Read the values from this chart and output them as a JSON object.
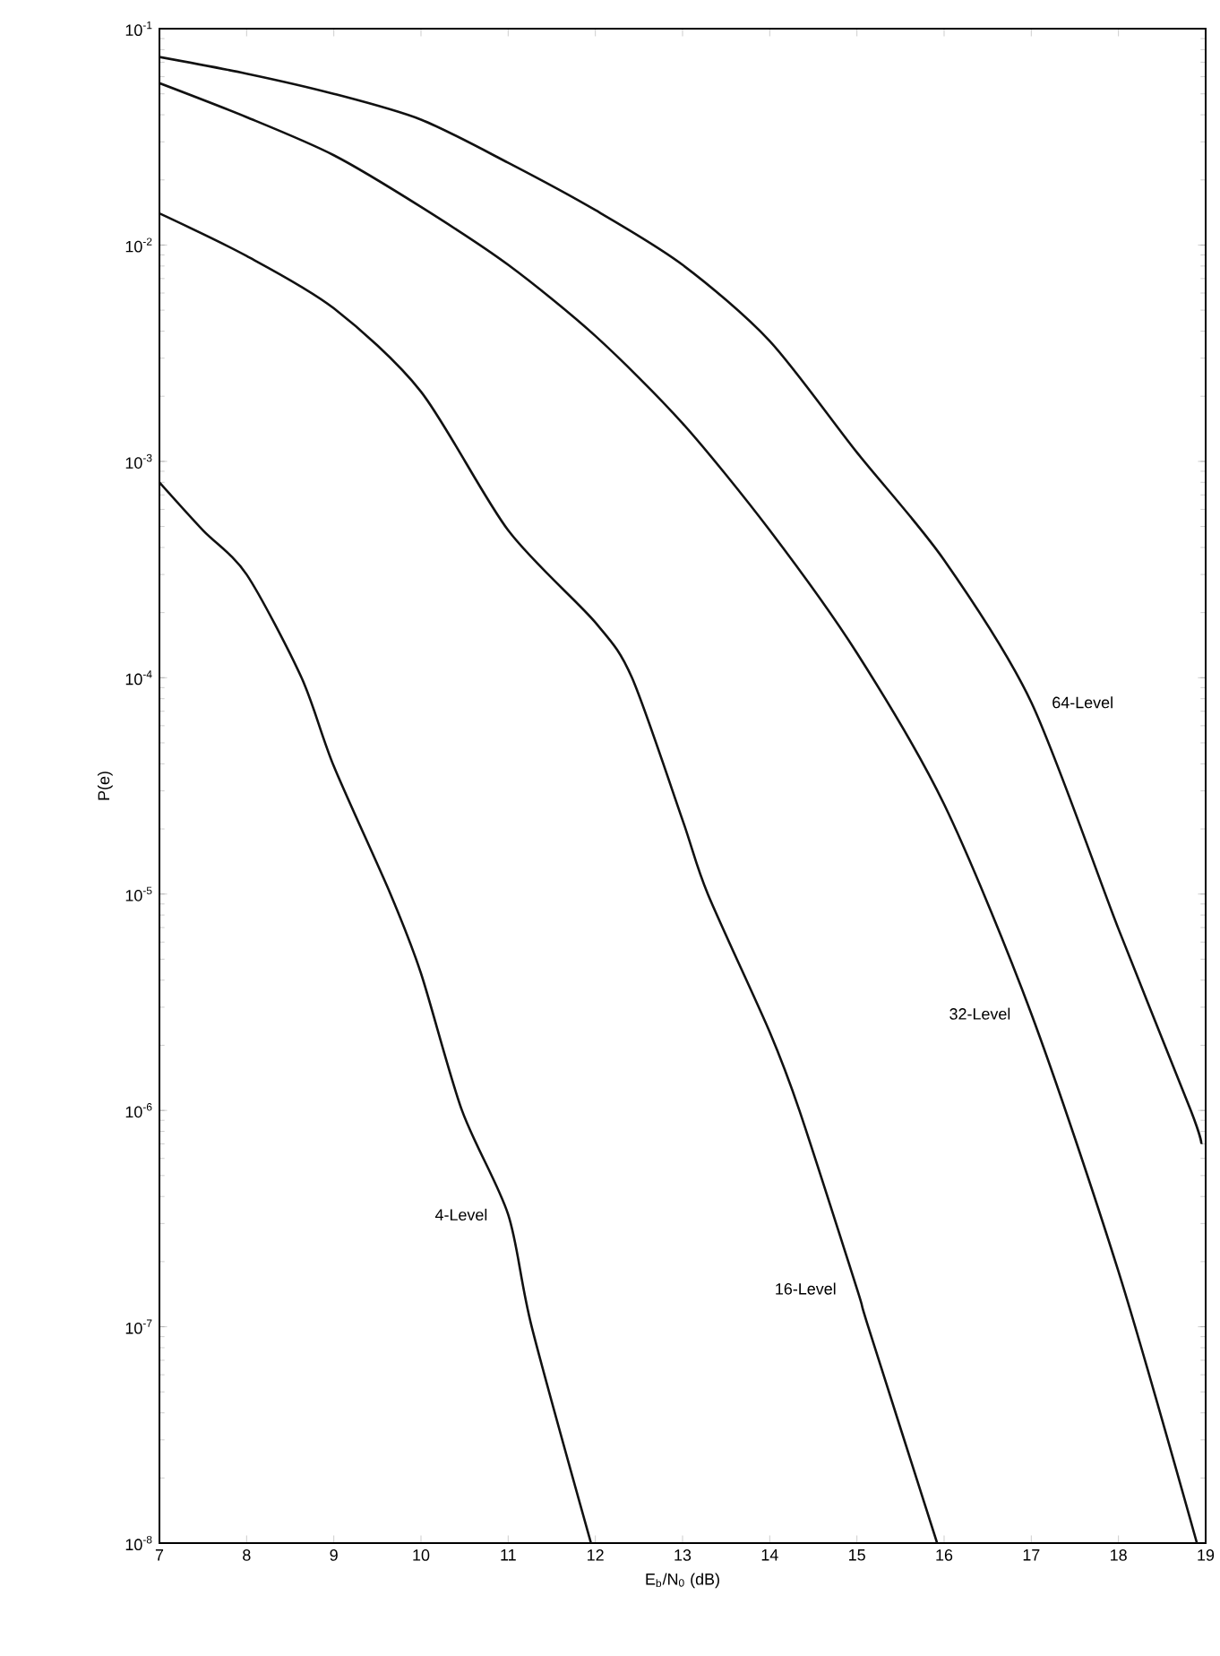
{
  "chart_data": {
    "type": "line",
    "xlabel": "E$_{b}$/N$_{0}$ (dB)",
    "ylabel": "P(e)",
    "log": "y",
    "grid": false,
    "legend": false,
    "marker": "none",
    "line_style": "solid",
    "xlim": [
      7,
      19
    ],
    "xticks": [
      7,
      8,
      9,
      10,
      11,
      12,
      13,
      14,
      15,
      16,
      17,
      18,
      19
    ],
    "ylim": [
      1e-08,
      0.1
    ],
    "yticks": [
      {
        "value": 1e-08,
        "label": "10$^{-8}$"
      },
      {
        "value": 1e-07,
        "label": "10$^{-7}$"
      },
      {
        "value": 1e-06,
        "label": "10$^{-6}$"
      },
      {
        "value": 1e-05,
        "label": "10$^{-5}$"
      },
      {
        "value": 0.0001,
        "label": "10$^{-4}$"
      },
      {
        "value": 0.001,
        "label": "10$^{-3}$"
      },
      {
        "value": 0.01,
        "label": "10$^{-2}$"
      },
      {
        "value": 0.1,
        "label": "10$^{-1}$"
      }
    ],
    "series": [
      {
        "name": "4-Level",
        "color": "#111111",
        "x": [
          7,
          7.5,
          8,
          8.63,
          9,
          9.65,
          10,
          10.47,
          11,
          11.27,
          11.95
        ],
        "values": [
          0.0008,
          0.00048,
          0.0003,
          0.0001,
          3.9e-05,
          1e-05,
          4.3e-06,
          1e-06,
          3.3e-07,
          1e-07,
          1e-08
        ]
      },
      {
        "name": "16-Level",
        "color": "#111111",
        "x": [
          7,
          8,
          9,
          10,
          11,
          12,
          12.42,
          13,
          13.29,
          14,
          14.34,
          15,
          15.13,
          15.92
        ],
        "values": [
          0.014,
          0.0089,
          0.0051,
          0.0021,
          0.00048,
          0.00018,
          0.0001,
          2.2e-05,
          1e-05,
          2.3e-06,
          1e-06,
          1.5e-07,
          1e-07,
          1e-08
        ]
      },
      {
        "name": "32-Level",
        "color": "#111111",
        "x": [
          7,
          8,
          9,
          10,
          11,
          12,
          13,
          14,
          15,
          16,
          17,
          18,
          18.9
        ],
        "values": [
          0.056,
          0.039,
          0.026,
          0.015,
          0.0081,
          0.0038,
          0.0015,
          0.00048,
          0.00013,
          2.6e-05,
          2.8e-06,
          1.8e-07,
          1e-08
        ]
      },
      {
        "name": "64-Level",
        "color": "#111111",
        "x": [
          7,
          8,
          9,
          10,
          11,
          12,
          13,
          14,
          15,
          16,
          17,
          18,
          18.83,
          18.95
        ],
        "values": [
          0.074,
          0.062,
          0.05,
          0.038,
          0.024,
          0.0145,
          0.0081,
          0.0036,
          0.0011,
          0.00035,
          7.7e-05,
          6.9e-06,
          1e-06,
          7e-07
        ]
      }
    ]
  }
}
